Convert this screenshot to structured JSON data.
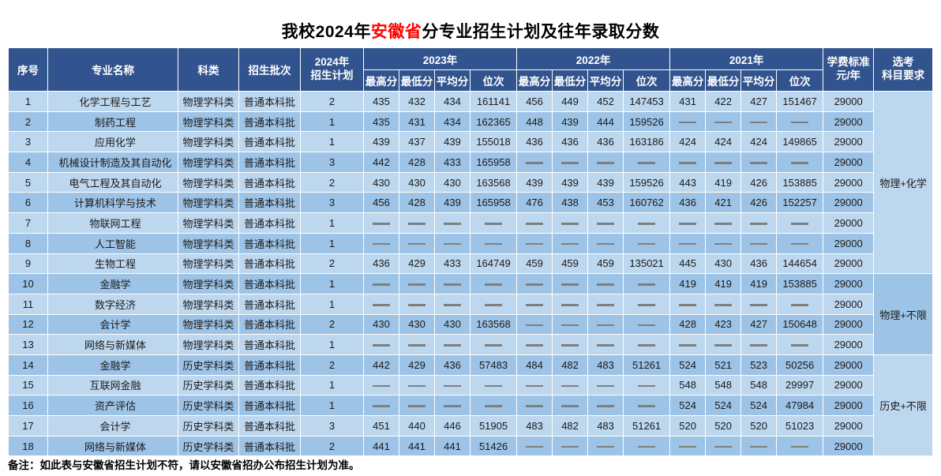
{
  "title": {
    "prefix": "我校2024年",
    "highlight": "安徽省",
    "suffix": "分专业招生计划及往年录取分数"
  },
  "note": "备注：如此表与安徽省招生计划不符，请以安徽省招办公布招生计划为准。",
  "colors": {
    "header_bg": "#32548E",
    "row_light": "#BDD7EE",
    "row_dark": "#9DC3E6",
    "title_highlight": "#FF0000",
    "dash": "#7F7F7F"
  },
  "header": {
    "col_no": "序号",
    "col_major": "专业名称",
    "col_category": "科类",
    "col_batch": "招生批次",
    "col_plan_line1": "2024年",
    "col_plan_line2": "招生计划",
    "year_groups": [
      "2023年",
      "2022年",
      "2021年"
    ],
    "sub_cols": [
      "最高分",
      "最低分",
      "平均分",
      "位次"
    ],
    "col_tuition_line1": "学费标准",
    "col_tuition_line2": "元/年",
    "col_subject_line1": "选考",
    "col_subject_line2": "科目要求"
  },
  "rows": [
    {
      "no": "1",
      "major": "化学工程与工艺",
      "category": "物理学科类",
      "batch": "普通本科批",
      "plan": "2",
      "y2023": [
        "435",
        "432",
        "434",
        "161141"
      ],
      "y2022": [
        "456",
        "449",
        "452",
        "147453"
      ],
      "y2021": [
        "431",
        "422",
        "427",
        "151467"
      ],
      "tuition": "29000"
    },
    {
      "no": "2",
      "major": "制药工程",
      "category": "物理学科类",
      "batch": "普通本科批",
      "plan": "1",
      "y2023": [
        "435",
        "431",
        "434",
        "162365"
      ],
      "y2022": [
        "448",
        "439",
        "444",
        "159526"
      ],
      "y2021": [
        "—",
        "—",
        "—",
        "—"
      ],
      "tuition": "29000"
    },
    {
      "no": "3",
      "major": "应用化学",
      "category": "物理学科类",
      "batch": "普通本科批",
      "plan": "1",
      "y2023": [
        "439",
        "437",
        "439",
        "155018"
      ],
      "y2022": [
        "436",
        "436",
        "436",
        "163186"
      ],
      "y2021": [
        "424",
        "424",
        "424",
        "149865"
      ],
      "tuition": "29000"
    },
    {
      "no": "4",
      "major": "机械设计制造及其自动化",
      "category": "物理学科类",
      "batch": "普通本科批",
      "plan": "3",
      "y2023": [
        "442",
        "428",
        "433",
        "165958"
      ],
      "y2022": [
        "—",
        "—",
        "—",
        "—"
      ],
      "y2021": [
        "—",
        "—",
        "—",
        "—"
      ],
      "tuition": "29000"
    },
    {
      "no": "5",
      "major": "电气工程及其自动化",
      "category": "物理学科类",
      "batch": "普通本科批",
      "plan": "2",
      "y2023": [
        "430",
        "430",
        "430",
        "163568"
      ],
      "y2022": [
        "439",
        "439",
        "439",
        "159526"
      ],
      "y2021": [
        "443",
        "419",
        "426",
        "153885"
      ],
      "tuition": "29000"
    },
    {
      "no": "6",
      "major": "计算机科学与技术",
      "category": "物理学科类",
      "batch": "普通本科批",
      "plan": "3",
      "y2023": [
        "456",
        "428",
        "439",
        "165958"
      ],
      "y2022": [
        "476",
        "438",
        "453",
        "160762"
      ],
      "y2021": [
        "436",
        "421",
        "426",
        "152257"
      ],
      "tuition": "29000"
    },
    {
      "no": "7",
      "major": "物联网工程",
      "category": "物理学科类",
      "batch": "普通本科批",
      "plan": "1",
      "y2023": [
        "—",
        "—",
        "—",
        "—"
      ],
      "y2022": [
        "—",
        "—",
        "—",
        "—"
      ],
      "y2021": [
        "—",
        "—",
        "—",
        "—"
      ],
      "tuition": "29000"
    },
    {
      "no": "8",
      "major": "人工智能",
      "category": "物理学科类",
      "batch": "普通本科批",
      "plan": "1",
      "y2023": [
        "—",
        "—",
        "—",
        "—"
      ],
      "y2022": [
        "—",
        "—",
        "—",
        "—"
      ],
      "y2021": [
        "—",
        "—",
        "—",
        "—"
      ],
      "tuition": "29000"
    },
    {
      "no": "9",
      "major": "生物工程",
      "category": "物理学科类",
      "batch": "普通本科批",
      "plan": "2",
      "y2023": [
        "436",
        "429",
        "433",
        "164749"
      ],
      "y2022": [
        "459",
        "459",
        "459",
        "135021"
      ],
      "y2021": [
        "445",
        "430",
        "436",
        "144654"
      ],
      "tuition": "29000"
    },
    {
      "no": "10",
      "major": "金融学",
      "category": "物理学科类",
      "batch": "普通本科批",
      "plan": "1",
      "y2023": [
        "—",
        "—",
        "—",
        "—"
      ],
      "y2022": [
        "—",
        "—",
        "—",
        "—"
      ],
      "y2021": [
        "419",
        "419",
        "419",
        "153885"
      ],
      "tuition": "29000"
    },
    {
      "no": "11",
      "major": "数字经济",
      "category": "物理学科类",
      "batch": "普通本科批",
      "plan": "1",
      "y2023": [
        "—",
        "—",
        "—",
        "—"
      ],
      "y2022": [
        "—",
        "—",
        "—",
        "—"
      ],
      "y2021": [
        "—",
        "—",
        "—",
        "—"
      ],
      "tuition": "29000"
    },
    {
      "no": "12",
      "major": "会计学",
      "category": "物理学科类",
      "batch": "普通本科批",
      "plan": "2",
      "y2023": [
        "430",
        "430",
        "430",
        "163568"
      ],
      "y2022": [
        "—",
        "—",
        "—",
        "—"
      ],
      "y2021": [
        "428",
        "423",
        "427",
        "150648"
      ],
      "tuition": "29000"
    },
    {
      "no": "13",
      "major": "网络与新媒体",
      "category": "物理学科类",
      "batch": "普通本科批",
      "plan": "1",
      "y2023": [
        "—",
        "—",
        "—",
        "—"
      ],
      "y2022": [
        "—",
        "—",
        "—",
        "—"
      ],
      "y2021": [
        "—",
        "—",
        "—",
        "—"
      ],
      "tuition": "29000"
    },
    {
      "no": "14",
      "major": "金融学",
      "category": "历史学科类",
      "batch": "普通本科批",
      "plan": "2",
      "y2023": [
        "442",
        "429",
        "436",
        "57483"
      ],
      "y2022": [
        "484",
        "482",
        "483",
        "51261"
      ],
      "y2021": [
        "524",
        "521",
        "523",
        "50256"
      ],
      "tuition": "29000"
    },
    {
      "no": "15",
      "major": "互联网金融",
      "category": "历史学科类",
      "batch": "普通本科批",
      "plan": "1",
      "y2023": [
        "—",
        "—",
        "—",
        "—"
      ],
      "y2022": [
        "—",
        "—",
        "—",
        "—"
      ],
      "y2021": [
        "548",
        "548",
        "548",
        "29997"
      ],
      "tuition": "29000"
    },
    {
      "no": "16",
      "major": "资产评估",
      "category": "历史学科类",
      "batch": "普通本科批",
      "plan": "1",
      "y2023": [
        "—",
        "—",
        "—",
        "—"
      ],
      "y2022": [
        "—",
        "—",
        "—",
        "—"
      ],
      "y2021": [
        "524",
        "524",
        "524",
        "47984"
      ],
      "tuition": "29000"
    },
    {
      "no": "17",
      "major": "会计学",
      "category": "历史学科类",
      "batch": "普通本科批",
      "plan": "3",
      "y2023": [
        "451",
        "440",
        "446",
        "51905"
      ],
      "y2022": [
        "483",
        "482",
        "483",
        "51261"
      ],
      "y2021": [
        "520",
        "520",
        "520",
        "51023"
      ],
      "tuition": "29000"
    },
    {
      "no": "18",
      "major": "网络与新媒体",
      "category": "历史学科类",
      "batch": "普通本科批",
      "plan": "2",
      "y2023": [
        "441",
        "441",
        "441",
        "51426"
      ],
      "y2022": [
        "—",
        "—",
        "—",
        "—"
      ],
      "y2021": [
        "—",
        "—",
        "—",
        "—"
      ],
      "tuition": "29000"
    }
  ],
  "subject_groups": [
    {
      "label": "物理+化学",
      "span": 9
    },
    {
      "label": "物理+不限",
      "span": 4
    },
    {
      "label": "历史+不限",
      "span": 5
    }
  ]
}
